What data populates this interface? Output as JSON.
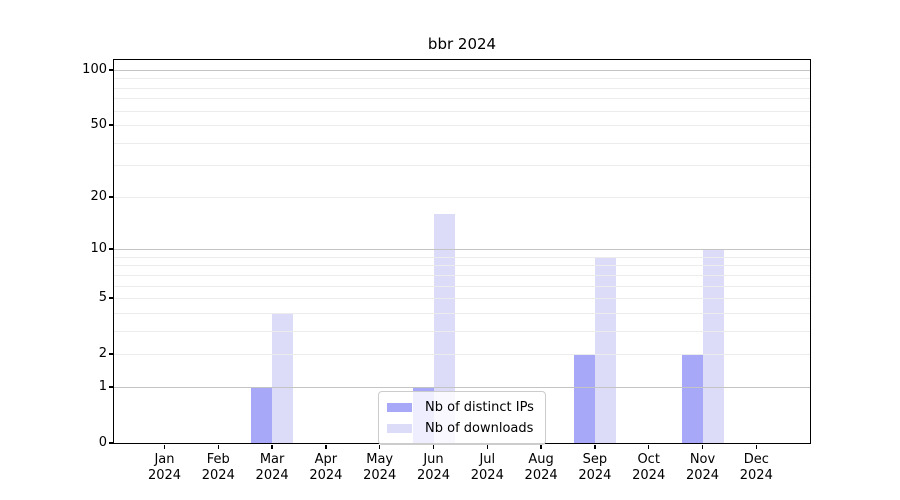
{
  "title": "bbr 2024",
  "chart_data": {
    "type": "bar",
    "title": "bbr 2024",
    "categories": [
      {
        "month": "Jan",
        "year": "2024"
      },
      {
        "month": "Feb",
        "year": "2024"
      },
      {
        "month": "Mar",
        "year": "2024"
      },
      {
        "month": "Apr",
        "year": "2024"
      },
      {
        "month": "May",
        "year": "2024"
      },
      {
        "month": "Jun",
        "year": "2024"
      },
      {
        "month": "Jul",
        "year": "2024"
      },
      {
        "month": "Aug",
        "year": "2024"
      },
      {
        "month": "Sep",
        "year": "2024"
      },
      {
        "month": "Oct",
        "year": "2024"
      },
      {
        "month": "Nov",
        "year": "2024"
      },
      {
        "month": "Dec",
        "year": "2024"
      }
    ],
    "series": [
      {
        "name": "Nb of distinct IPs",
        "color": "#a8a8f8",
        "values": [
          0,
          0,
          1,
          0,
          0,
          1,
          0,
          0,
          2,
          0,
          2,
          0
        ]
      },
      {
        "name": "Nb of downloads",
        "color": "#dcdcf9",
        "values": [
          0,
          0,
          4,
          0,
          0,
          16,
          0,
          0,
          9,
          0,
          10,
          0
        ]
      }
    ],
    "yscale": "log1p",
    "ylim": [
      0,
      113
    ],
    "yticks": [
      0,
      1,
      2,
      5,
      10,
      20,
      50,
      100
    ],
    "grid": {
      "major_lines": [
        1,
        10,
        100
      ],
      "minor_lines": [
        2,
        3,
        4,
        5,
        6,
        7,
        8,
        9,
        20,
        30,
        40,
        50,
        60,
        70,
        80,
        90
      ],
      "major_color": "#c4c4c4",
      "minor_color": "#ececec",
      "axisbelow": false
    },
    "legend_position": "lower center",
    "xlabel": "",
    "ylabel": ""
  }
}
